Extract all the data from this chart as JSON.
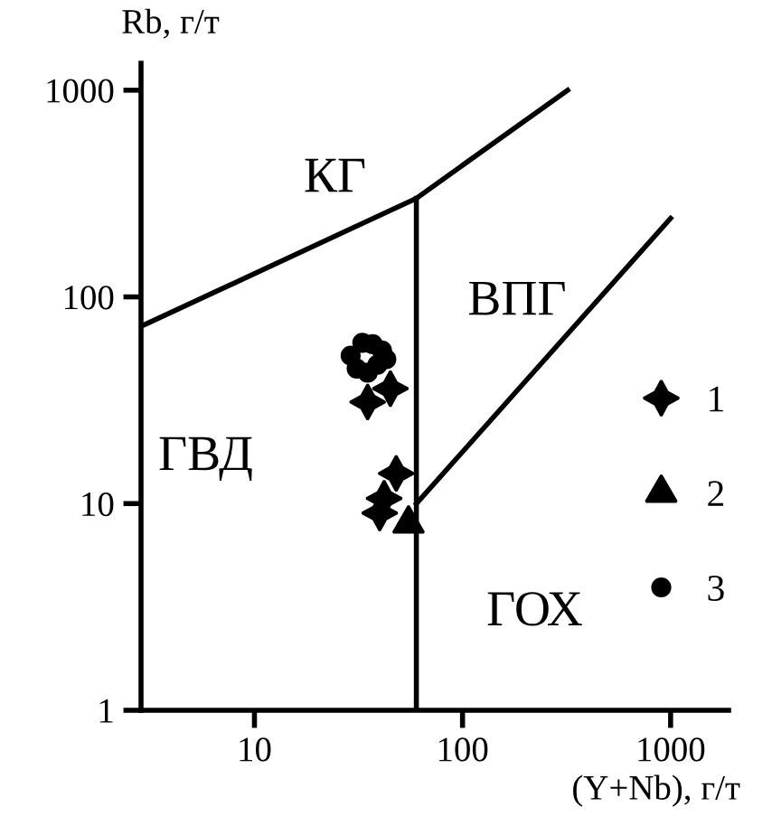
{
  "chart_data": {
    "type": "scatter",
    "xlabel": "(Y+Nb), г/т",
    "ylabel": "Rb, г/т",
    "log": "xy",
    "xlim": [
      2.85,
      1900
    ],
    "ylim": [
      1,
      1350
    ],
    "xticks": [
      10,
      100,
      1000
    ],
    "yticks": [
      1,
      10,
      100,
      1000
    ],
    "grid": false,
    "legend": "right",
    "series": [
      {
        "type": "line",
        "color": "#000000",
        "x": [
          2.85,
          60,
          320
        ],
        "values": [
          72,
          300,
          1000
        ]
      },
      {
        "type": "line",
        "color": "#000000",
        "x": [
          60,
          60
        ],
        "values": [
          300,
          1
        ]
      },
      {
        "type": "line",
        "color": "#000000",
        "x": [
          60,
          1000
        ],
        "values": [
          10,
          240
        ]
      },
      {
        "name": "1",
        "color": "#000000",
        "marker": "star",
        "x": [
          35,
          45,
          42,
          48,
          40
        ],
        "values": [
          31,
          36,
          10.6,
          14,
          9
        ]
      },
      {
        "name": "2",
        "color": "#000000",
        "marker": "triangle",
        "x": [
          55
        ],
        "values": [
          8
        ]
      },
      {
        "name": "3",
        "color": "#000000",
        "marker": "circle",
        "x": [
          29,
          33,
          37,
          41,
          31,
          35,
          39,
          43
        ],
        "values": [
          52,
          60,
          59,
          55,
          45,
          43,
          47,
          50
        ]
      }
    ],
    "annotations": [
      "КГ",
      "ВПГ",
      "ГВД",
      "ГОХ"
    ]
  }
}
